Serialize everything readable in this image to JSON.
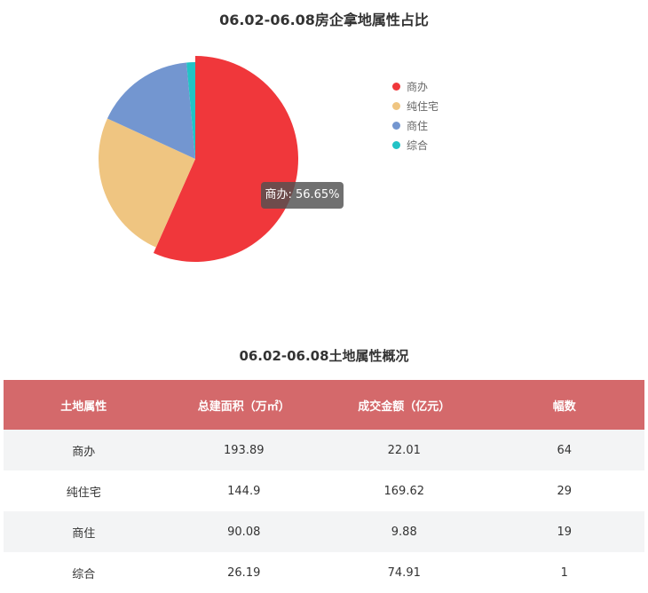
{
  "chart_data": {
    "type": "pie",
    "title": "06.02-06.08房企拿地属性占比",
    "slices": [
      {
        "name": "商办",
        "value": 56.65,
        "color": "#f0373b"
      },
      {
        "name": "纯住宅",
        "value": 25.2,
        "color": "#efc581"
      },
      {
        "name": "商住",
        "value": 16.7,
        "color": "#7396d0"
      },
      {
        "name": "综合",
        "value": 1.45,
        "color": "#22c3c6"
      }
    ],
    "legend_position": "right",
    "tooltip": "商办: 56.65%"
  },
  "table": {
    "title": "06.02-06.08土地属性概况",
    "headers": [
      "土地属性",
      "总建面积（万㎡）",
      "成交金额（亿元）",
      "幅数"
    ],
    "rows": [
      [
        "商办",
        "193.89",
        "22.01",
        "64"
      ],
      [
        "纯住宅",
        "144.9",
        "169.62",
        "29"
      ],
      [
        "商住",
        "90.08",
        "9.88",
        "19"
      ],
      [
        "综合",
        "26.19",
        "74.91",
        "1"
      ]
    ]
  }
}
